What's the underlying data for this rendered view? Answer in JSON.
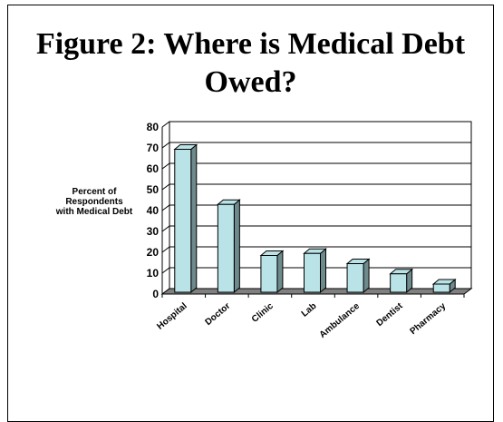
{
  "chart_data": {
    "type": "bar",
    "title_lines": [
      "Figure 2: Where is Medical Debt",
      "Owed?"
    ],
    "xlabel": "",
    "ylabel_lines": [
      "Percent of",
      "Respondents",
      "with Medical Debt"
    ],
    "categories": [
      "Hospital",
      "Doctor",
      "Clinic",
      "Lab",
      "Ambulance",
      "Dentist",
      "Pharmacy"
    ],
    "values": [
      70,
      43,
      18,
      19,
      14,
      9,
      4
    ],
    "ylim": [
      0,
      80
    ],
    "yticks": [
      "0",
      "10",
      "20",
      "30",
      "40",
      "50",
      "60",
      "70",
      "80"
    ],
    "grid": true,
    "legend": "none",
    "bar_color": "#b9e3e6",
    "bar_side_color": "#6f8a8c",
    "floor_color": "#808080"
  }
}
